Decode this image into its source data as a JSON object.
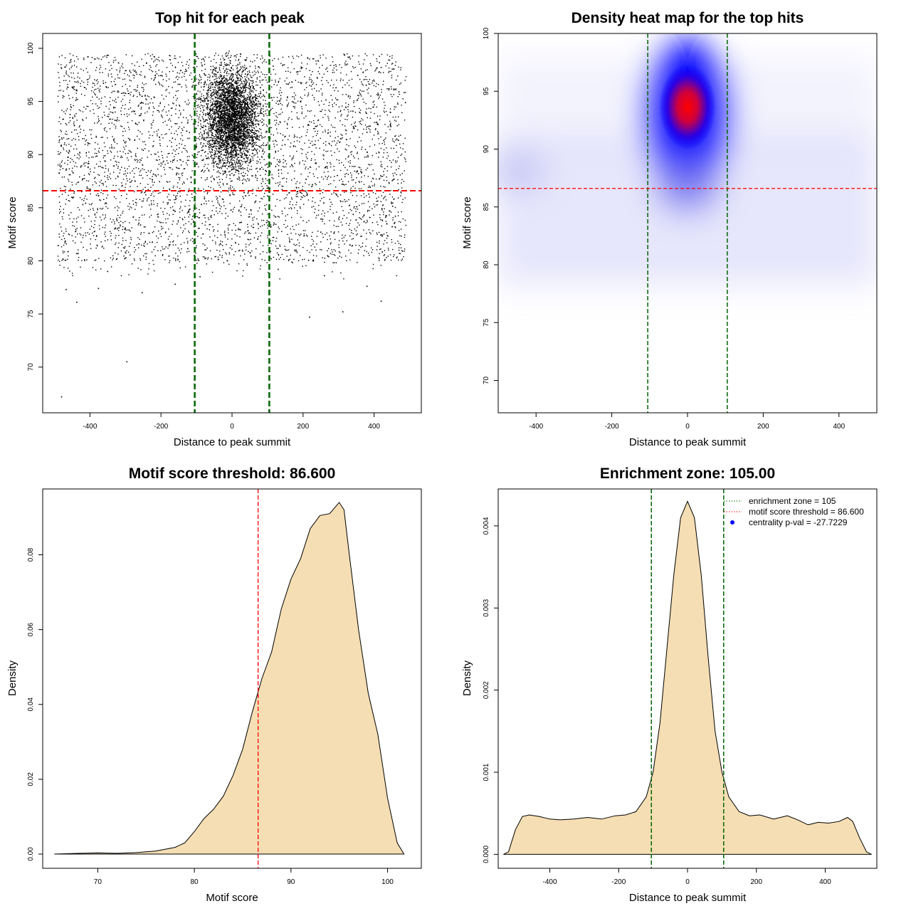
{
  "colors": {
    "green": "#006400",
    "red": "#ff0000",
    "fill": "#f5deb3",
    "blue": "#0000ff",
    "black": "#000000"
  },
  "chart_data": [
    {
      "id": "scatter",
      "type": "scatter",
      "title": "Top hit for each peak",
      "xlabel": "Distance to peak summit",
      "ylabel": "Motif score",
      "xlim": [
        -533,
        533
      ],
      "ylim": [
        65.7,
        101.4
      ],
      "xticks": [
        -400,
        -200,
        0,
        200,
        400
      ],
      "yticks": [
        70,
        75,
        80,
        85,
        90,
        95,
        100
      ],
      "vlines": [
        -105,
        105
      ],
      "hline": 86.6,
      "points": [
        [
          -480,
          67.2
        ],
        [
          -296,
          70.5
        ],
        [
          -467,
          77.3
        ],
        [
          -437,
          76.1
        ],
        [
          -376,
          77.4
        ],
        [
          -253,
          77.0
        ],
        [
          -160,
          77.8
        ],
        [
          -90,
          78.5
        ],
        [
          130,
          79.2
        ],
        [
          218,
          74.7
        ],
        [
          312,
          75.2
        ],
        [
          380,
          77.6
        ],
        [
          420,
          76.2
        ],
        [
          -350,
          79.0
        ],
        [
          260,
          78.6
        ],
        [
          -420,
          85.3
        ],
        [
          -300,
          83.0
        ],
        [
          -150,
          88.7
        ],
        [
          0,
          95.0
        ],
        [
          50,
          93.5
        ],
        [
          -40,
          91.2
        ],
        [
          30,
          97.8
        ],
        [
          380,
          92.1
        ],
        [
          460,
          84.2
        ],
        [
          -470,
          81.8
        ],
        [
          150,
          89.4
        ],
        [
          -80,
          94.2
        ],
        [
          80,
          96.3
        ],
        [
          -10,
          88.9
        ],
        [
          20,
          92.6
        ],
        [
          -250,
          90.4
        ],
        [
          310,
          87.2
        ],
        [
          -380,
          95.4
        ],
        [
          420,
          98.2
        ],
        [
          -200,
          83.6
        ],
        [
          250,
          82.7
        ],
        [
          -460,
          91.5
        ],
        [
          470,
          95.9
        ],
        [
          100,
          86.1
        ],
        [
          -100,
          90.8
        ]
      ]
    },
    {
      "id": "heatmap",
      "type": "heatmap",
      "title": "Density heat map for the top hits",
      "xlabel": "Distance to peak summit",
      "ylabel": "Motif score",
      "xlim": [
        -500,
        500
      ],
      "ylim": [
        67.2,
        100
      ],
      "xticks": [
        -400,
        -200,
        0,
        200,
        400
      ],
      "yticks": [
        70,
        75,
        80,
        85,
        90,
        95,
        100
      ],
      "vlines": [
        -105,
        105
      ],
      "hline": 86.6,
      "peak": {
        "x": 5,
        "y": 95
      }
    },
    {
      "id": "score_density",
      "type": "area",
      "title": "Motif score threshold: 86.600",
      "xlabel": "Motif score",
      "ylabel": "Density",
      "xlim": [
        64.3,
        103.5
      ],
      "ylim": [
        -0.0038,
        0.0976
      ],
      "xticks": [
        70,
        80,
        90,
        100
      ],
      "yticks": [
        0.0,
        0.02,
        0.04,
        0.06,
        0.08
      ],
      "ytick_labels": [
        "0.00",
        "0.02",
        "0.04",
        "0.06",
        "0.08"
      ],
      "vline": 86.6,
      "x": [
        65.5,
        68,
        70,
        72,
        74,
        76,
        78,
        79,
        80,
        81,
        82,
        83,
        84,
        85,
        86,
        87,
        88,
        89,
        90,
        91,
        92,
        93,
        94,
        94.5,
        95,
        95.5,
        96,
        97,
        98,
        99,
        100,
        101,
        101.7
      ],
      "y": [
        0.0,
        0.0002,
        0.0003,
        0.0002,
        0.0004,
        0.0008,
        0.0018,
        0.003,
        0.006,
        0.0095,
        0.012,
        0.0155,
        0.021,
        0.028,
        0.038,
        0.047,
        0.054,
        0.0655,
        0.0735,
        0.079,
        0.087,
        0.0905,
        0.091,
        0.0925,
        0.094,
        0.092,
        0.081,
        0.06,
        0.043,
        0.032,
        0.015,
        0.003,
        0.0
      ]
    },
    {
      "id": "distance_density",
      "type": "area",
      "title": "Enrichment zone: 105.00",
      "xlabel": "Distance to peak summit",
      "ylabel": "Density",
      "xlim": [
        -550,
        550
      ],
      "ylim": [
        -0.00017,
        0.00445
      ],
      "xticks": [
        -400,
        -200,
        0,
        200,
        400
      ],
      "yticks": [
        0.0,
        0.001,
        0.002,
        0.003,
        0.004
      ],
      "ytick_labels": [
        "0.000",
        "0.001",
        "0.002",
        "0.003",
        "0.004"
      ],
      "vlines": [
        -105,
        105
      ],
      "x": [
        -535,
        -520,
        -500,
        -480,
        -460,
        -430,
        -400,
        -370,
        -330,
        -290,
        -250,
        -210,
        -180,
        -150,
        -120,
        -100,
        -80,
        -60,
        -40,
        -20,
        0,
        20,
        40,
        60,
        80,
        100,
        120,
        150,
        180,
        210,
        250,
        290,
        320,
        350,
        380,
        410,
        440,
        465,
        480,
        500,
        520,
        535
      ],
      "y": [
        0.0,
        3e-05,
        0.0003,
        0.00046,
        0.00048,
        0.00046,
        0.00043,
        0.00042,
        0.00043,
        0.00045,
        0.00043,
        0.00047,
        0.00048,
        0.00052,
        0.0007,
        0.001,
        0.0016,
        0.0025,
        0.0034,
        0.0041,
        0.0043,
        0.0041,
        0.0034,
        0.0024,
        0.0015,
        0.001,
        0.0007,
        0.00052,
        0.00047,
        0.00048,
        0.00043,
        0.00047,
        0.00042,
        0.00036,
        0.00039,
        0.00038,
        0.0004,
        0.00045,
        0.0004,
        0.0002,
        3e-05,
        0.0
      ],
      "legend": [
        {
          "label": "enrichment zone = 105",
          "style": "green-dotted"
        },
        {
          "label": "motif score threshold = 86.600",
          "style": "red-dotted"
        },
        {
          "label": "centrality p-val = -27.7229",
          "style": "blue-dot"
        }
      ]
    }
  ]
}
